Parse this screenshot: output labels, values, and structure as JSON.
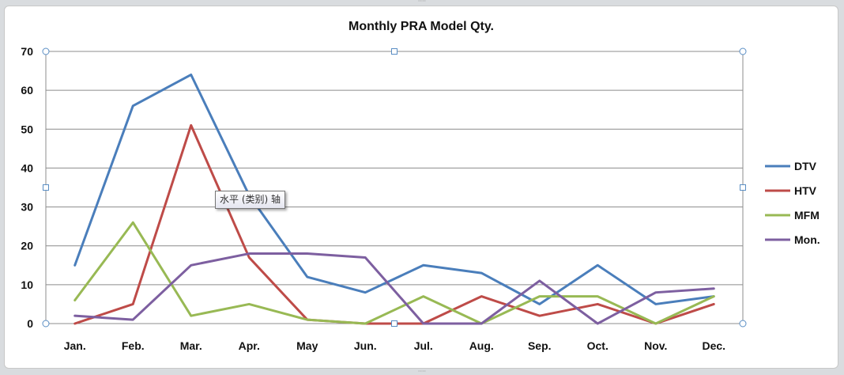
{
  "chart_data": {
    "type": "line",
    "title": "Monthly PRA Model Qty.",
    "categories": [
      "Jan.",
      "Feb.",
      "Mar.",
      "Apr.",
      "May",
      "Jun.",
      "Jul.",
      "Aug.",
      "Sep.",
      "Oct.",
      "Nov.",
      "Dec."
    ],
    "ylim": [
      0,
      70
    ],
    "yticks": [
      0,
      10,
      20,
      30,
      40,
      50,
      60,
      70
    ],
    "grid": true,
    "legend_position": "right",
    "series": [
      {
        "name": "DTV",
        "color": "#4a7ebb",
        "values": [
          15,
          56,
          64,
          33,
          12,
          8,
          15,
          13,
          5,
          15,
          5,
          7
        ]
      },
      {
        "name": "HTV",
        "color": "#be4b48",
        "values": [
          0,
          5,
          51,
          17,
          1,
          0,
          0,
          7,
          2,
          5,
          0,
          5
        ]
      },
      {
        "name": "MFM",
        "color": "#98b954",
        "values": [
          6,
          26,
          2,
          5,
          1,
          0,
          7,
          0,
          7,
          7,
          0,
          7
        ]
      },
      {
        "name": "Mon.",
        "color": "#7d5fa0",
        "values": [
          2,
          1,
          15,
          18,
          18,
          17,
          0,
          0,
          11,
          0,
          8,
          9
        ]
      }
    ]
  },
  "tooltip": {
    "text": "水平 (类别) 轴"
  }
}
